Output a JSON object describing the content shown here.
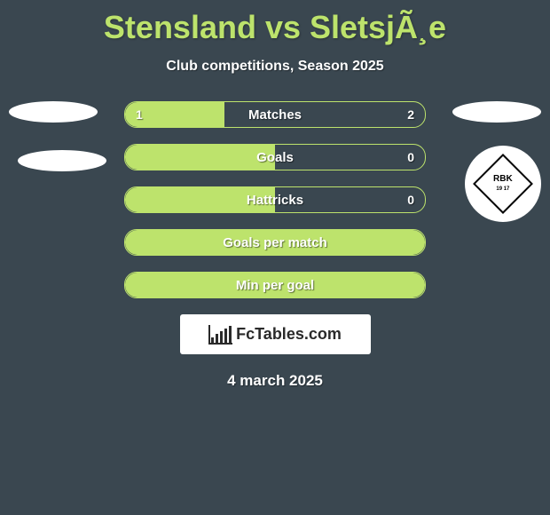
{
  "title": "Stensland vs SletsjÃ¸e",
  "subtitle": "Club competitions, Season 2025",
  "date": "4 march 2025",
  "logo_text": "FcTables.com",
  "crest_text": "RBK",
  "crest_years": "19 17",
  "colors": {
    "background": "#3a4750",
    "accent": "#bde36c",
    "text": "#ffffff",
    "logo_bg": "#ffffff",
    "logo_text": "#2a2a2a"
  },
  "bars": [
    {
      "label": "Matches",
      "left": "1",
      "right": "2",
      "fill_pct": 33
    },
    {
      "label": "Goals",
      "left": "",
      "right": "0",
      "fill_pct": 50
    },
    {
      "label": "Hattricks",
      "left": "",
      "right": "0",
      "fill_pct": 50
    },
    {
      "label": "Goals per match",
      "left": "",
      "right": "",
      "fill_pct": 100
    },
    {
      "label": "Min per goal",
      "left": "",
      "right": "",
      "fill_pct": 100
    }
  ]
}
